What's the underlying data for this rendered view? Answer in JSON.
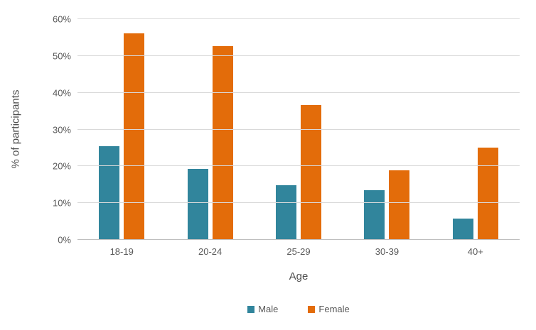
{
  "chart_data": {
    "type": "bar",
    "categories": [
      "18-19",
      "20-24",
      "25-29",
      "30-39",
      "40+"
    ],
    "series": [
      {
        "name": "Male",
        "color": "#31859C",
        "values": [
          25.4,
          19.2,
          14.8,
          13.5,
          5.7
        ]
      },
      {
        "name": "Female",
        "color": "#E36C0A",
        "values": [
          56.1,
          52.7,
          36.7,
          19.0,
          25.1
        ]
      }
    ],
    "title": "",
    "xlabel": "Age",
    "ylabel": "% of participants",
    "ylim": [
      0,
      60
    ],
    "ytick_step": 10,
    "ytick_labels": [
      "0%",
      "10%",
      "20%",
      "30%",
      "40%",
      "50%",
      "60%"
    ],
    "grid": true,
    "legend_position": "bottom",
    "colors": {
      "gridline": "#d9d9d9",
      "axis_line": "#bfbfbf",
      "tick_text": "#595959",
      "axis_title_text": "#4d4d4d",
      "background": "#ffffff"
    }
  }
}
